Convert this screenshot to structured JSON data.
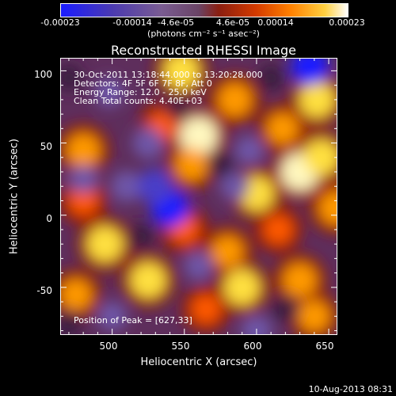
{
  "chart_data": {
    "type": "heatmap",
    "title": "Reconstructed RHESSI Image",
    "xlabel": "Heliocentric X (arcsec)",
    "ylabel": "Heliocentric Y (arcsec)",
    "xlim": [
      464,
      656
    ],
    "ylim": [
      -83,
      109
    ],
    "xticks": [
      "500",
      "550",
      "600",
      "650"
    ],
    "xtick_values": [
      500,
      550,
      600,
      650
    ],
    "yticks": [
      "100",
      "50",
      "0",
      "-50"
    ],
    "ytick_values": [
      100,
      50,
      0,
      -50
    ],
    "colorbar": {
      "range": [
        -0.00023,
        0.00023
      ],
      "tick_labels": [
        "-0.00023",
        "-0.00014",
        "-4.6e-05",
        "4.6e-05",
        "0.00014",
        "0.00023"
      ],
      "tick_values": [
        -0.00023,
        -0.00014,
        -4.6e-05,
        4.6e-05,
        0.00014,
        0.00023
      ],
      "unit_label": "(photons cm⁻² s⁻¹ asec⁻²)",
      "colors": [
        "#1a1cff",
        "#7a5c92",
        "#6a4466",
        "#d43a00",
        "#ff8000",
        "#ffd040",
        "#ffffff"
      ]
    },
    "peak": [
      627,
      33
    ],
    "blobs": [
      {
        "x": 548,
        "y": 100,
        "v": 0.9
      },
      {
        "x": 585,
        "y": 80,
        "v": 0.8
      },
      {
        "x": 560,
        "y": 55,
        "v": 1.0
      },
      {
        "x": 555,
        "y": 35,
        "v": 0.75
      },
      {
        "x": 480,
        "y": 45,
        "v": 0.8
      },
      {
        "x": 535,
        "y": 62,
        "v": 0.6
      },
      {
        "x": 600,
        "y": 15,
        "v": 0.85
      },
      {
        "x": 618,
        "y": 60,
        "v": 0.7
      },
      {
        "x": 615,
        "y": -10,
        "v": 0.6
      },
      {
        "x": 630,
        "y": 30,
        "v": 1.0
      },
      {
        "x": 642,
        "y": 80,
        "v": 0.9
      },
      {
        "x": 645,
        "y": 40,
        "v": 0.9
      },
      {
        "x": 655,
        "y": 5,
        "v": 0.8
      },
      {
        "x": 630,
        "y": -45,
        "v": 0.8
      },
      {
        "x": 640,
        "y": -70,
        "v": 0.7
      },
      {
        "x": 590,
        "y": -50,
        "v": 0.9
      },
      {
        "x": 580,
        "y": -25,
        "v": 0.7
      },
      {
        "x": 550,
        "y": -10,
        "v": 0.6
      },
      {
        "x": 525,
        "y": -45,
        "v": 0.9
      },
      {
        "x": 495,
        "y": -20,
        "v": 0.9
      },
      {
        "x": 475,
        "y": -55,
        "v": 0.7
      },
      {
        "x": 480,
        "y": 10,
        "v": 0.6
      },
      {
        "x": 565,
        "y": -65,
        "v": 0.6
      },
      {
        "x": 498,
        "y": 85,
        "v": -0.6
      },
      {
        "x": 470,
        "y": 95,
        "v": -0.5
      },
      {
        "x": 480,
        "y": 25,
        "v": -0.6
      },
      {
        "x": 510,
        "y": 20,
        "v": -0.7
      },
      {
        "x": 540,
        "y": 5,
        "v": -1.0
      },
      {
        "x": 530,
        "y": 20,
        "v": -0.9
      },
      {
        "x": 525,
        "y": 50,
        "v": -0.7
      },
      {
        "x": 585,
        "y": 20,
        "v": -0.6
      },
      {
        "x": 595,
        "y": 45,
        "v": -0.6
      },
      {
        "x": 575,
        "y": 35,
        "v": -0.5
      },
      {
        "x": 520,
        "y": -15,
        "v": -0.5
      },
      {
        "x": 560,
        "y": -35,
        "v": -0.6
      },
      {
        "x": 600,
        "y": -80,
        "v": -0.7
      },
      {
        "x": 470,
        "y": -75,
        "v": -0.5
      },
      {
        "x": 610,
        "y": 95,
        "v": -0.5
      },
      {
        "x": 637,
        "y": 103,
        "v": -1.0
      },
      {
        "x": 620,
        "y": -65,
        "v": -0.5
      },
      {
        "x": 500,
        "y": -70,
        "v": -0.6
      },
      {
        "x": 545,
        "y": 75,
        "v": -0.4
      }
    ]
  },
  "info": {
    "time_range": "30-Oct-2011 13:18:44.000 to 13:20:28.000",
    "detectors": "Detectors: 4F 5F 6F 7F 8F, Att 0",
    "energy_range": "Energy Range: 12.0 - 25.0 keV",
    "clean": "Clean    Total counts: 4.40E+03",
    "peak_text": "Position of Peak = [627,33]"
  },
  "footer": {
    "timestamp": "10-Aug-2013 08:31"
  }
}
